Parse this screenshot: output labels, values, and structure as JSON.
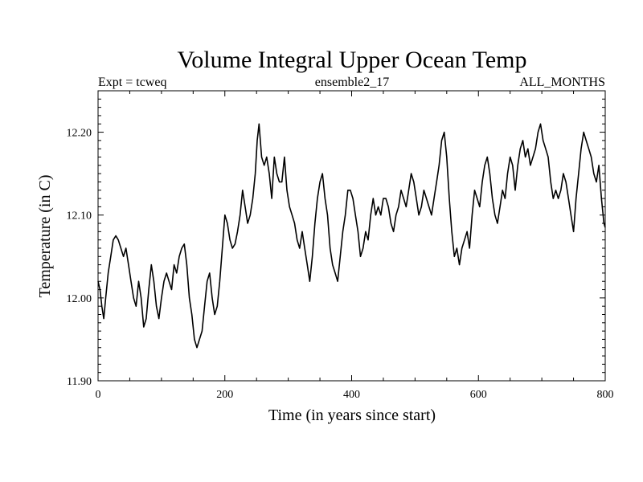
{
  "chart_data": {
    "type": "line",
    "title": "Volume Integral Upper Ocean Temp",
    "subtitle_left": "Expt = tcweq",
    "subtitle_center": "ensemble2_17",
    "subtitle_right": "ALL_MONTHS",
    "xlabel": "Time (in years since start)",
    "ylabel": "Temperature (in C)",
    "xlim": [
      0,
      800
    ],
    "ylim": [
      11.9,
      12.25
    ],
    "x_ticks": [
      0,
      200,
      400,
      600,
      800
    ],
    "x_tick_labels": [
      "0",
      "200",
      "400",
      "600",
      "800"
    ],
    "y_ticks": [
      11.9,
      12.0,
      12.1,
      12.2
    ],
    "y_tick_labels": [
      "11.90",
      "12.00",
      "12.10",
      "12.20"
    ],
    "grid": false,
    "series": [
      {
        "name": "Volume Integral Upper Ocean Temp",
        "color": "#000000",
        "x": [
          0,
          3,
          6,
          9,
          12,
          16,
          20,
          24,
          28,
          32,
          36,
          40,
          44,
          48,
          52,
          56,
          60,
          64,
          68,
          72,
          76,
          80,
          84,
          88,
          92,
          96,
          100,
          104,
          108,
          112,
          116,
          120,
          124,
          128,
          132,
          136,
          140,
          144,
          148,
          152,
          156,
          160,
          164,
          168,
          172,
          176,
          180,
          184,
          188,
          192,
          196,
          200,
          204,
          208,
          212,
          216,
          220,
          224,
          228,
          232,
          236,
          240,
          244,
          248,
          251,
          254,
          258,
          262,
          266,
          270,
          274,
          278,
          282,
          286,
          290,
          294,
          298,
          302,
          306,
          310,
          314,
          318,
          322,
          326,
          330,
          334,
          338,
          342,
          346,
          350,
          354,
          358,
          362,
          366,
          370,
          374,
          378,
          382,
          386,
          390,
          394,
          398,
          402,
          406,
          410,
          414,
          418,
          422,
          426,
          430,
          434,
          438,
          442,
          446,
          450,
          454,
          458,
          462,
          466,
          470,
          474,
          478,
          482,
          486,
          490,
          494,
          498,
          502,
          506,
          510,
          514,
          518,
          522,
          526,
          530,
          534,
          538,
          542,
          546,
          550,
          554,
          558,
          562,
          566,
          570,
          574,
          578,
          582,
          586,
          590,
          594,
          598,
          602,
          606,
          610,
          614,
          618,
          622,
          626,
          630,
          634,
          638,
          642,
          646,
          650,
          654,
          658,
          662,
          666,
          670,
          674,
          678,
          682,
          686,
          690,
          694,
          698,
          702,
          706,
          710,
          714,
          718,
          722,
          726,
          730,
          734,
          738,
          742,
          746,
          750,
          754,
          758,
          762,
          766,
          770,
          774,
          778,
          782,
          786,
          790,
          794,
          798,
          800
        ],
        "values": [
          12.02,
          12.01,
          11.99,
          11.975,
          12.0,
          12.03,
          12.05,
          12.07,
          12.075,
          12.07,
          12.06,
          12.05,
          12.06,
          12.04,
          12.02,
          12.0,
          11.99,
          12.02,
          12.0,
          11.965,
          11.975,
          12.01,
          12.04,
          12.02,
          11.99,
          11.975,
          12.0,
          12.02,
          12.03,
          12.02,
          12.01,
          12.04,
          12.03,
          12.05,
          12.06,
          12.065,
          12.04,
          12.0,
          11.98,
          11.95,
          11.94,
          11.95,
          11.96,
          11.99,
          12.02,
          12.03,
          12.0,
          11.98,
          11.99,
          12.02,
          12.06,
          12.1,
          12.09,
          12.07,
          12.06,
          12.065,
          12.08,
          12.1,
          12.13,
          12.11,
          12.09,
          12.1,
          12.12,
          12.15,
          12.19,
          12.21,
          12.17,
          12.16,
          12.17,
          12.15,
          12.12,
          12.17,
          12.15,
          12.14,
          12.14,
          12.17,
          12.13,
          12.11,
          12.1,
          12.09,
          12.07,
          12.06,
          12.08,
          12.06,
          12.04,
          12.02,
          12.05,
          12.09,
          12.12,
          12.14,
          12.15,
          12.12,
          12.1,
          12.06,
          12.04,
          12.03,
          12.02,
          12.05,
          12.08,
          12.1,
          12.13,
          12.13,
          12.12,
          12.1,
          12.08,
          12.05,
          12.06,
          12.08,
          12.07,
          12.1,
          12.12,
          12.1,
          12.11,
          12.1,
          12.12,
          12.12,
          12.11,
          12.09,
          12.08,
          12.1,
          12.11,
          12.13,
          12.12,
          12.11,
          12.13,
          12.15,
          12.14,
          12.12,
          12.1,
          12.11,
          12.13,
          12.12,
          12.11,
          12.1,
          12.12,
          12.14,
          12.16,
          12.19,
          12.2,
          12.17,
          12.12,
          12.08,
          12.05,
          12.06,
          12.04,
          12.06,
          12.07,
          12.08,
          12.06,
          12.1,
          12.13,
          12.12,
          12.11,
          12.14,
          12.16,
          12.17,
          12.15,
          12.12,
          12.1,
          12.09,
          12.11,
          12.13,
          12.12,
          12.15,
          12.17,
          12.16,
          12.13,
          12.16,
          12.18,
          12.19,
          12.17,
          12.18,
          12.16,
          12.17,
          12.18,
          12.2,
          12.21,
          12.19,
          12.18,
          12.17,
          12.14,
          12.12,
          12.13,
          12.12,
          12.13,
          12.15,
          12.14,
          12.12,
          12.1,
          12.08,
          12.12,
          12.15,
          12.18,
          12.2,
          12.19,
          12.18,
          12.17,
          12.15,
          12.14,
          12.16,
          12.12,
          12.09,
          12.085
        ]
      }
    ]
  }
}
